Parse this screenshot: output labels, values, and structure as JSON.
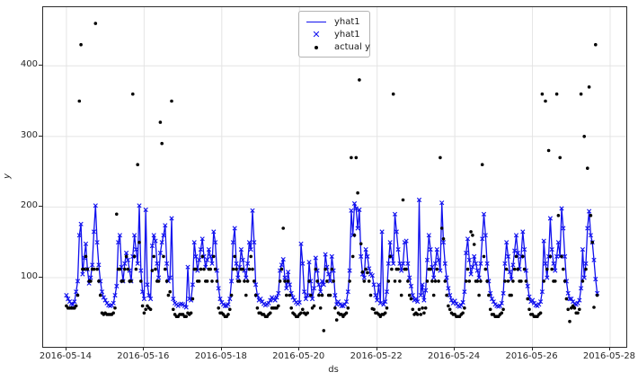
{
  "chart_data": {
    "type": "line",
    "title": "",
    "xlabel": "ds",
    "ylabel": "y",
    "grid": true,
    "background": "#ffffff",
    "colors": {
      "yhat_line": "#1010ee",
      "yhat_marker": "#1010ee",
      "actual_dot": "#000000",
      "grid": "#e4e4e4",
      "spine": "#2b2b2b"
    },
    "legend_position": "upper center",
    "legend": [
      {
        "glyph": "line",
        "label": "yhat1"
      },
      {
        "glyph": "x-marker",
        "label": "yhat1"
      },
      {
        "glyph": "dot",
        "label": "actual y"
      }
    ],
    "x_tick_labels": [
      "2016-05-14",
      "2016-05-16",
      "2016-05-18",
      "2016-05-20",
      "2016-05-22",
      "2016-05-24",
      "2016-05-26",
      "2016-05-28"
    ],
    "x_tick_hours": [
      0,
      48,
      96,
      144,
      192,
      240,
      288,
      336
    ],
    "y_ticks": [
      100,
      200,
      300,
      400
    ],
    "ylim": [
      2,
      483
    ],
    "xlim_hours": [
      -14.4,
      346
    ],
    "start_datetime": "2016-05-14 00:00",
    "step_hours": 1,
    "series": [
      {
        "name": "yhat1",
        "render": "line+x-marker",
        "values_key": "yhat1_hourly"
      },
      {
        "name": "actual y",
        "render": "scatter-dot",
        "values_key": "actual_hourly"
      }
    ],
    "yhat1_hourly": [
      75,
      70,
      66,
      63,
      62,
      66,
      80,
      95,
      160,
      176,
      105,
      128,
      148,
      112,
      92,
      100,
      118,
      165,
      202,
      150,
      118,
      95,
      80,
      72,
      68,
      64,
      61,
      60,
      61,
      64,
      75,
      88,
      150,
      160,
      115,
      95,
      120,
      135,
      125,
      110,
      95,
      130,
      160,
      140,
      120,
      202,
      110,
      80,
      70,
      196,
      90,
      75,
      70,
      145,
      160,
      152,
      120,
      100,
      135,
      150,
      160,
      174,
      120,
      95,
      100,
      184,
      70,
      64,
      62,
      60,
      62,
      63,
      62,
      60,
      58,
      115,
      70,
      68,
      90,
      150,
      130,
      110,
      125,
      140,
      155,
      130,
      115,
      125,
      140,
      130,
      120,
      165,
      150,
      110,
      85,
      70,
      65,
      62,
      60,
      60,
      62,
      70,
      95,
      150,
      170,
      120,
      100,
      115,
      140,
      125,
      110,
      100,
      120,
      150,
      140,
      195,
      150,
      90,
      75,
      68,
      70,
      66,
      63,
      61,
      62,
      64,
      68,
      72,
      70,
      68,
      72,
      78,
      110,
      118,
      126,
      100,
      85,
      108,
      90,
      78,
      72,
      68,
      65,
      63,
      65,
      148,
      120,
      80,
      70,
      75,
      122,
      95,
      70,
      85,
      128,
      110,
      90,
      80,
      95,
      90,
      133,
      115,
      105,
      95,
      130,
      110,
      75,
      62,
      66,
      62,
      60,
      60,
      62,
      66,
      80,
      110,
      195,
      160,
      205,
      198,
      170,
      196,
      130,
      105,
      100,
      140,
      130,
      113,
      105,
      103,
      90,
      75,
      68,
      90,
      64,
      165,
      62,
      66,
      80,
      120,
      150,
      130,
      120,
      190,
      165,
      140,
      120,
      110,
      120,
      150,
      152,
      120,
      100,
      88,
      75,
      68,
      70,
      66,
      210,
      75,
      90,
      68,
      82,
      125,
      160,
      140,
      115,
      100,
      120,
      140,
      125,
      110,
      206,
      150,
      120,
      100,
      85,
      75,
      68,
      64,
      67,
      63,
      60,
      59,
      61,
      65,
      80,
      135,
      155,
      125,
      105,
      115,
      130,
      120,
      110,
      100,
      120,
      155,
      190,
      160,
      120,
      95,
      78,
      70,
      66,
      62,
      60,
      59,
      60,
      64,
      78,
      120,
      150,
      130,
      108,
      98,
      118,
      138,
      160,
      135,
      112,
      130,
      165,
      140,
      110,
      88,
      73,
      66,
      68,
      64,
      61,
      60,
      62,
      66,
      80,
      152,
      120,
      100,
      130,
      184,
      140,
      120,
      110,
      130,
      150,
      130,
      198,
      170,
      130,
      95,
      78,
      70,
      70,
      66,
      63,
      62,
      64,
      68,
      85,
      140,
      100,
      120,
      170,
      194,
      160,
      150,
      125,
      98,
      78
    ],
    "actual_hourly": [
      60,
      57,
      57,
      57,
      57,
      57,
      60,
      75,
      350,
      430,
      112,
      112,
      130,
      112,
      95,
      95,
      112,
      112,
      460,
      112,
      95,
      75,
      50,
      48,
      50,
      48,
      48,
      48,
      48,
      50,
      57,
      190,
      112,
      112,
      95,
      95,
      112,
      130,
      112,
      95,
      95,
      360,
      130,
      112,
      260,
      150,
      95,
      60,
      50,
      55,
      60,
      57,
      55,
      110,
      130,
      112,
      95,
      95,
      320,
      290,
      130,
      112,
      95,
      75,
      80,
      350,
      55,
      48,
      45,
      45,
      48,
      48,
      48,
      45,
      45,
      50,
      48,
      50,
      70,
      112,
      112,
      95,
      95,
      112,
      130,
      112,
      95,
      95,
      112,
      112,
      95,
      130,
      112,
      95,
      57,
      50,
      50,
      48,
      45,
      45,
      48,
      55,
      75,
      112,
      130,
      112,
      95,
      95,
      112,
      112,
      95,
      75,
      95,
      112,
      130,
      112,
      95,
      75,
      57,
      50,
      50,
      48,
      48,
      45,
      45,
      48,
      50,
      57,
      57,
      57,
      57,
      60,
      95,
      112,
      170,
      95,
      75,
      95,
      75,
      57,
      50,
      48,
      45,
      45,
      48,
      50,
      55,
      50,
      48,
      50,
      95,
      75,
      57,
      60,
      112,
      95,
      75,
      57,
      75,
      25,
      112,
      95,
      75,
      75,
      112,
      95,
      57,
      40,
      50,
      48,
      48,
      45,
      48,
      50,
      57,
      95,
      270,
      130,
      160,
      270,
      220,
      380,
      148,
      108,
      95,
      112,
      107,
      95,
      75,
      56,
      55,
      50,
      50,
      48,
      45,
      48,
      48,
      50,
      57,
      95,
      130,
      112,
      360,
      95,
      112,
      112,
      95,
      75,
      210,
      112,
      112,
      95,
      75,
      70,
      55,
      48,
      50,
      48,
      55,
      48,
      57,
      50,
      57,
      95,
      112,
      112,
      95,
      75,
      95,
      112,
      95,
      270,
      170,
      155,
      95,
      75,
      60,
      55,
      50,
      48,
      48,
      45,
      45,
      45,
      48,
      50,
      57,
      95,
      112,
      95,
      165,
      160,
      147,
      95,
      95,
      75,
      95,
      260,
      130,
      112,
      95,
      75,
      55,
      48,
      48,
      45,
      45,
      45,
      48,
      50,
      55,
      95,
      112,
      95,
      75,
      75,
      95,
      112,
      130,
      112,
      95,
      95,
      130,
      112,
      95,
      70,
      55,
      48,
      48,
      45,
      45,
      45,
      48,
      50,
      360,
      95,
      350,
      112,
      280,
      130,
      112,
      95,
      95,
      360,
      188,
      270,
      130,
      112,
      95,
      70,
      55,
      38,
      57,
      60,
      57,
      50,
      50,
      55,
      360,
      95,
      300,
      112,
      255,
      370,
      188,
      150,
      58,
      430,
      75
    ]
  }
}
